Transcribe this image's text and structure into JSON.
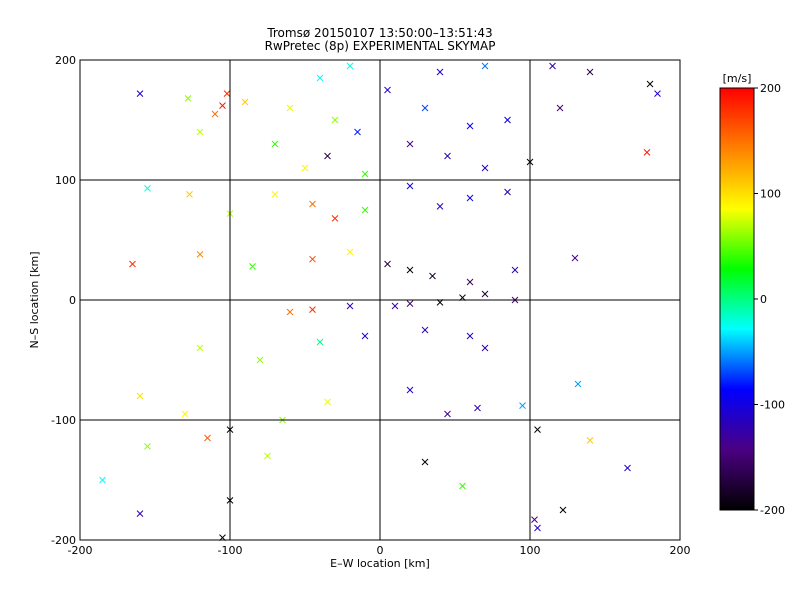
{
  "chart_data": {
    "type": "scatter",
    "title": "Tromsø 20150107 13:50:00–13:51:43",
    "subtitle": "RwPretec (8p) EXPERIMENTAL SKYMAP",
    "xlabel": "E–W location [km]",
    "ylabel": "N–S location [km]",
    "xlim": [
      -200,
      200
    ],
    "ylim": [
      -200,
      200
    ],
    "x_ticks": [
      -200,
      -100,
      0,
      100,
      200
    ],
    "y_ticks": [
      -200,
      -100,
      0,
      100,
      200
    ],
    "grid": true,
    "colorbar": {
      "label": "[m/s]",
      "range": [
        -200,
        200
      ],
      "ticks": [
        200,
        100,
        0,
        -100,
        -200
      ],
      "colors": [
        "#000000",
        "#4b0082",
        "#0000ff",
        "#00ffff",
        "#00ff00",
        "#ffff00",
        "#ff8000",
        "#ff0000"
      ]
    },
    "points": [
      [
        -160,
        172,
        -110,
        "x"
      ],
      [
        -102,
        172,
        180,
        "x"
      ],
      [
        -128,
        168,
        60,
        "x"
      ],
      [
        -120,
        140,
        70,
        "x"
      ],
      [
        -90,
        165,
        110,
        "x"
      ],
      [
        -105,
        162,
        190,
        "x"
      ],
      [
        -110,
        155,
        150,
        "x"
      ],
      [
        -40,
        185,
        -30,
        "x"
      ],
      [
        -20,
        195,
        -20,
        "x"
      ],
      [
        40,
        190,
        -110,
        "x"
      ],
      [
        70,
        195,
        -60,
        "x"
      ],
      [
        115,
        195,
        -120,
        "x"
      ],
      [
        140,
        190,
        -170,
        "x"
      ],
      [
        180,
        180,
        -200,
        "x"
      ],
      [
        185,
        172,
        -110,
        "x"
      ],
      [
        -60,
        160,
        80,
        "x"
      ],
      [
        -30,
        150,
        60,
        "x"
      ],
      [
        -15,
        140,
        -80,
        "x"
      ],
      [
        5,
        175,
        -110,
        "x"
      ],
      [
        30,
        160,
        -70,
        "x"
      ],
      [
        60,
        145,
        -90,
        "x"
      ],
      [
        85,
        150,
        -100,
        "x"
      ],
      [
        120,
        160,
        -150,
        "x"
      ],
      [
        -70,
        130,
        40,
        "x"
      ],
      [
        -50,
        110,
        90,
        "x"
      ],
      [
        -35,
        120,
        -170,
        "x"
      ],
      [
        -10,
        105,
        40,
        "x"
      ],
      [
        20,
        130,
        -140,
        "x"
      ],
      [
        45,
        120,
        -120,
        "x"
      ],
      [
        70,
        110,
        -110,
        "x"
      ],
      [
        100,
        115,
        -200,
        "x"
      ],
      [
        178,
        123,
        190,
        "x"
      ],
      [
        -155,
        93,
        -20,
        "x"
      ],
      [
        -127,
        88,
        110,
        "x"
      ],
      [
        -100,
        72,
        70,
        "x"
      ],
      [
        -70,
        88,
        90,
        "x"
      ],
      [
        -45,
        80,
        150,
        "x"
      ],
      [
        -30,
        68,
        180,
        "x"
      ],
      [
        -10,
        75,
        40,
        "x"
      ],
      [
        20,
        95,
        -100,
        "x"
      ],
      [
        40,
        78,
        -110,
        "x"
      ],
      [
        60,
        85,
        -100,
        "x"
      ],
      [
        85,
        90,
        -120,
        "x"
      ],
      [
        -165,
        30,
        180,
        "x"
      ],
      [
        -120,
        38,
        140,
        "x"
      ],
      [
        -85,
        28,
        40,
        "x"
      ],
      [
        -45,
        34,
        170,
        "x"
      ],
      [
        -20,
        40,
        90,
        "x"
      ],
      [
        5,
        30,
        -170,
        "x"
      ],
      [
        20,
        25,
        -200,
        "x"
      ],
      [
        35,
        20,
        -180,
        "x"
      ],
      [
        60,
        15,
        -160,
        "x"
      ],
      [
        90,
        25,
        -120,
        "x"
      ],
      [
        130,
        35,
        -140,
        "x"
      ],
      [
        -60,
        -10,
        150,
        "x"
      ],
      [
        -45,
        -8,
        180,
        "x"
      ],
      [
        -20,
        -5,
        -120,
        "x"
      ],
      [
        10,
        -5,
        -130,
        "x"
      ],
      [
        20,
        -3,
        -150,
        "x"
      ],
      [
        40,
        -2,
        -200,
        "x"
      ],
      [
        55,
        2,
        -190,
        "x"
      ],
      [
        70,
        5,
        -180,
        "x"
      ],
      [
        90,
        0,
        -150,
        "x"
      ],
      [
        -120,
        -40,
        70,
        "x"
      ],
      [
        -80,
        -50,
        60,
        "x"
      ],
      [
        -40,
        -35,
        0,
        "x"
      ],
      [
        -10,
        -30,
        -110,
        "x"
      ],
      [
        30,
        -25,
        -120,
        "x"
      ],
      [
        60,
        -30,
        -110,
        "x"
      ],
      [
        70,
        -40,
        -120,
        "x"
      ],
      [
        -160,
        -80,
        100,
        "x"
      ],
      [
        -130,
        -95,
        90,
        "x"
      ],
      [
        -100,
        -108,
        -200,
        "x"
      ],
      [
        -65,
        -100,
        60,
        "x"
      ],
      [
        -35,
        -85,
        80,
        "x"
      ],
      [
        20,
        -75,
        -110,
        "x"
      ],
      [
        45,
        -95,
        -130,
        "x"
      ],
      [
        65,
        -90,
        -120,
        "x"
      ],
      [
        95,
        -88,
        -50,
        "x"
      ],
      [
        132,
        -70,
        -50,
        "x"
      ],
      [
        -185,
        -150,
        -30,
        "x"
      ],
      [
        -155,
        -122,
        60,
        "x"
      ],
      [
        -115,
        -115,
        160,
        "x"
      ],
      [
        -75,
        -130,
        70,
        "x"
      ],
      [
        30,
        -135,
        -200,
        "x"
      ],
      [
        55,
        -155,
        40,
        "x"
      ],
      [
        105,
        -108,
        -200,
        "x"
      ],
      [
        140,
        -117,
        110,
        "x"
      ],
      [
        165,
        -140,
        -110,
        "x"
      ],
      [
        -160,
        -178,
        -120,
        "x"
      ],
      [
        -105,
        -198,
        -200,
        "x"
      ],
      [
        -100,
        -167,
        -200,
        "x"
      ],
      [
        103,
        -183,
        -140,
        "x"
      ],
      [
        122,
        -175,
        -200,
        "x"
      ],
      [
        105,
        -190,
        -110,
        "x"
      ]
    ]
  }
}
